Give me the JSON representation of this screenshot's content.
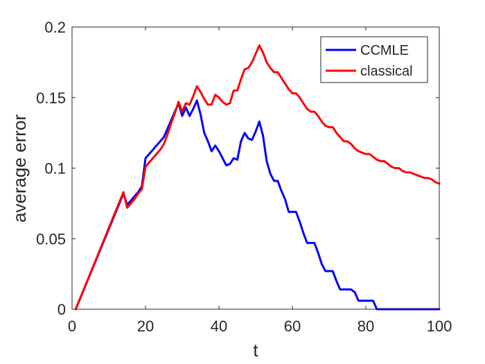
{
  "chart_data": {
    "type": "line",
    "title": "",
    "xlabel": "t",
    "ylabel": "average error",
    "xlim": [
      0,
      100
    ],
    "ylim": [
      0,
      0.2
    ],
    "xticks": [
      0,
      20,
      40,
      60,
      80,
      100
    ],
    "yticks": [
      0,
      0.05,
      0.1,
      0.15,
      0.2
    ],
    "xtick_labels": [
      "0",
      "20",
      "40",
      "60",
      "80",
      "100"
    ],
    "ytick_labels": [
      "0",
      "0.05",
      "0.1",
      "0.15",
      "0.2"
    ],
    "grid": false,
    "legend_position": "top-right",
    "series": [
      {
        "name": "CCMLE",
        "color": "#0000ff",
        "x": [
          1,
          14,
          15,
          16,
          17,
          18,
          19,
          20,
          21,
          22,
          23,
          24,
          25,
          26,
          27,
          28,
          29,
          30,
          31,
          32,
          33,
          34,
          35,
          36,
          37,
          38,
          39,
          40,
          41,
          42,
          43,
          44,
          45,
          46,
          47,
          48,
          49,
          50,
          51,
          52,
          53,
          54,
          55,
          56,
          57,
          58,
          59,
          60,
          61,
          62,
          63,
          64,
          65,
          66,
          67,
          68,
          69,
          70,
          71,
          72,
          73,
          74,
          75,
          76,
          77,
          78,
          79,
          80,
          81,
          82,
          83,
          84,
          85,
          90,
          95,
          100
        ],
        "y": [
          0,
          0.082,
          0.074,
          0.077,
          0.08,
          0.083,
          0.087,
          0.107,
          0.11,
          0.113,
          0.116,
          0.119,
          0.122,
          0.128,
          0.134,
          0.14,
          0.146,
          0.137,
          0.143,
          0.137,
          0.142,
          0.148,
          0.138,
          0.125,
          0.119,
          0.112,
          0.116,
          0.112,
          0.107,
          0.102,
          0.103,
          0.107,
          0.106,
          0.119,
          0.125,
          0.121,
          0.12,
          0.126,
          0.133,
          0.123,
          0.105,
          0.096,
          0.091,
          0.091,
          0.084,
          0.078,
          0.069,
          0.069,
          0.069,
          0.062,
          0.054,
          0.047,
          0.047,
          0.047,
          0.04,
          0.032,
          0.027,
          0.027,
          0.027,
          0.02,
          0.014,
          0.014,
          0.014,
          0.014,
          0.012,
          0.006,
          0.006,
          0.006,
          0.006,
          0.006,
          0.0,
          0.0,
          0.0,
          0.0,
          0.0,
          0.0
        ]
      },
      {
        "name": "classical",
        "color": "#ff0000",
        "x": [
          1,
          14,
          15,
          16,
          17,
          18,
          19,
          20,
          21,
          22,
          23,
          24,
          25,
          26,
          27,
          28,
          29,
          30,
          31,
          32,
          33,
          34,
          35,
          36,
          37,
          38,
          39,
          40,
          41,
          42,
          43,
          44,
          45,
          46,
          47,
          48,
          49,
          50,
          51,
          52,
          53,
          54,
          55,
          56,
          57,
          58,
          59,
          60,
          61,
          62,
          63,
          64,
          65,
          66,
          67,
          68,
          69,
          70,
          71,
          72,
          73,
          74,
          75,
          76,
          77,
          78,
          79,
          80,
          81,
          82,
          83,
          84,
          85,
          86,
          87,
          88,
          89,
          90,
          91,
          92,
          93,
          94,
          95,
          96,
          97,
          98,
          99,
          100
        ],
        "y": [
          0,
          0.083,
          0.072,
          0.075,
          0.078,
          0.082,
          0.085,
          0.101,
          0.104,
          0.107,
          0.11,
          0.113,
          0.117,
          0.124,
          0.132,
          0.139,
          0.147,
          0.14,
          0.146,
          0.145,
          0.151,
          0.158,
          0.154,
          0.149,
          0.145,
          0.145,
          0.152,
          0.15,
          0.147,
          0.145,
          0.146,
          0.155,
          0.155,
          0.163,
          0.17,
          0.171,
          0.175,
          0.181,
          0.187,
          0.182,
          0.175,
          0.171,
          0.168,
          0.168,
          0.164,
          0.16,
          0.156,
          0.153,
          0.153,
          0.15,
          0.146,
          0.142,
          0.14,
          0.14,
          0.137,
          0.133,
          0.13,
          0.129,
          0.129,
          0.125,
          0.122,
          0.119,
          0.119,
          0.117,
          0.114,
          0.112,
          0.111,
          0.11,
          0.11,
          0.108,
          0.106,
          0.105,
          0.105,
          0.103,
          0.101,
          0.1,
          0.1,
          0.098,
          0.097,
          0.097,
          0.096,
          0.095,
          0.094,
          0.093,
          0.093,
          0.092,
          0.09,
          0.089
        ]
      }
    ]
  }
}
